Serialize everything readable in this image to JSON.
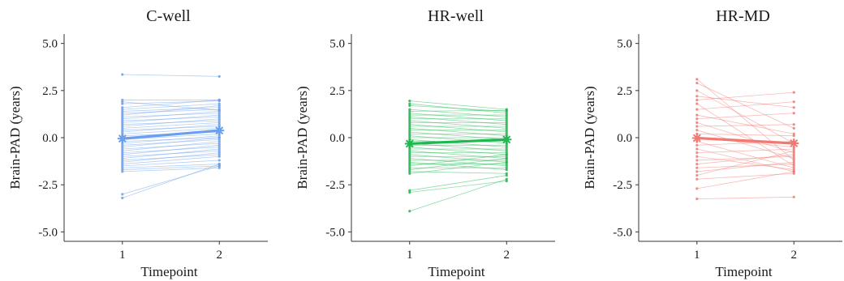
{
  "chart_data": [
    {
      "type": "line",
      "title": "C-well",
      "xlabel": "Timepoint",
      "ylabel": "Brain-PAD (years)",
      "x": [
        1,
        2
      ],
      "xticks": [
        "1",
        "2"
      ],
      "ylim": [
        -5.5,
        5.5
      ],
      "yticks": [
        "5.0",
        "2.5",
        "0.0",
        "-2.5",
        "-5.0"
      ],
      "color": "#6a9fee",
      "grid": false,
      "mean": [
        -0.05,
        0.38
      ],
      "subjects": [
        [
          3.35,
          3.25
        ],
        [
          2.0,
          2.0
        ],
        [
          1.9,
          1.45
        ],
        [
          1.8,
          1.95
        ],
        [
          1.6,
          2.0
        ],
        [
          1.5,
          1.8
        ],
        [
          1.4,
          1.6
        ],
        [
          1.3,
          1.5
        ],
        [
          1.2,
          1.7
        ],
        [
          1.1,
          1.3
        ],
        [
          1.0,
          1.4
        ],
        [
          0.9,
          1.1
        ],
        [
          0.8,
          1.2
        ],
        [
          0.7,
          0.9
        ],
        [
          0.6,
          1.0
        ],
        [
          0.5,
          0.8
        ],
        [
          0.4,
          0.6
        ],
        [
          0.3,
          0.7
        ],
        [
          0.2,
          0.5
        ],
        [
          0.1,
          0.3
        ],
        [
          0.0,
          0.4
        ],
        [
          -0.1,
          0.2
        ],
        [
          -0.2,
          0.0
        ],
        [
          -0.3,
          0.1
        ],
        [
          -0.4,
          -0.1
        ],
        [
          -0.5,
          0.0
        ],
        [
          -0.6,
          -0.3
        ],
        [
          -0.7,
          -0.2
        ],
        [
          -0.8,
          -0.5
        ],
        [
          -0.9,
          -0.4
        ],
        [
          -1.0,
          -0.7
        ],
        [
          -1.1,
          -0.6
        ],
        [
          -1.2,
          -0.9
        ],
        [
          -1.3,
          -0.8
        ],
        [
          -1.4,
          -1.0
        ],
        [
          -1.5,
          -1.2
        ],
        [
          -1.6,
          -1.4
        ],
        [
          -1.7,
          -1.5
        ],
        [
          -1.8,
          -1.6
        ],
        [
          -3.0,
          -1.5
        ],
        [
          -3.2,
          -1.4
        ]
      ]
    },
    {
      "type": "line",
      "title": "HR-well",
      "xlabel": "Timepoint",
      "ylabel": "Brain-PAD (years)",
      "x": [
        1,
        2
      ],
      "xticks": [
        "1",
        "2"
      ],
      "ylim": [
        -5.5,
        5.5
      ],
      "yticks": [
        "5.0",
        "2.5",
        "0.0",
        "-2.5",
        "-5.0"
      ],
      "color": "#1fb84f",
      "grid": false,
      "mean": [
        -0.32,
        -0.1
      ],
      "subjects": [
        [
          1.95,
          1.5
        ],
        [
          1.8,
          1.3
        ],
        [
          1.7,
          1.4
        ],
        [
          1.5,
          1.1
        ],
        [
          1.4,
          1.45
        ],
        [
          1.3,
          0.9
        ],
        [
          1.2,
          1.2
        ],
        [
          1.1,
          0.7
        ],
        [
          1.0,
          1.0
        ],
        [
          0.9,
          0.5
        ],
        [
          0.8,
          0.8
        ],
        [
          0.7,
          0.3
        ],
        [
          0.6,
          0.6
        ],
        [
          0.5,
          0.1
        ],
        [
          0.4,
          0.4
        ],
        [
          0.3,
          -0.1
        ],
        [
          0.2,
          0.2
        ],
        [
          0.1,
          -0.3
        ],
        [
          0.0,
          0.0
        ],
        [
          -0.1,
          -0.5
        ],
        [
          -0.2,
          -0.2
        ],
        [
          -0.3,
          -0.7
        ],
        [
          -0.4,
          -0.4
        ],
        [
          -0.5,
          -0.9
        ],
        [
          -0.6,
          -0.6
        ],
        [
          -0.7,
          -1.1
        ],
        [
          -0.8,
          -0.8
        ],
        [
          -0.9,
          -1.3
        ],
        [
          -1.0,
          -1.0
        ],
        [
          -1.1,
          -1.5
        ],
        [
          -1.2,
          -1.2
        ],
        [
          -1.3,
          -1.7
        ],
        [
          -1.4,
          -1.4
        ],
        [
          -1.5,
          -0.9
        ],
        [
          -1.6,
          -1.6
        ],
        [
          -1.7,
          -1.1
        ],
        [
          -1.8,
          -1.9
        ],
        [
          -1.9,
          -1.3
        ],
        [
          -2.8,
          -2.0
        ],
        [
          -2.9,
          -2.3
        ],
        [
          -3.9,
          -2.2
        ]
      ]
    },
    {
      "type": "line",
      "title": "HR-MD",
      "xlabel": "Timepoint",
      "ylabel": "Brain-PAD (years)",
      "x": [
        1,
        2
      ],
      "xticks": [
        "1",
        "2"
      ],
      "ylim": [
        -5.5,
        5.5
      ],
      "yticks": [
        "5.0",
        "2.5",
        "0.0",
        "-2.5",
        "-5.0"
      ],
      "color": "#f07a73",
      "grid": false,
      "mean": [
        -0.02,
        -0.3
      ],
      "subjects": [
        [
          3.1,
          -1.2
        ],
        [
          2.9,
          0.5
        ],
        [
          2.5,
          -0.3
        ],
        [
          2.2,
          1.6
        ],
        [
          2.0,
          2.4
        ],
        [
          1.8,
          -1.5
        ],
        [
          1.5,
          1.9
        ],
        [
          1.2,
          0.2
        ],
        [
          1.0,
          1.3
        ],
        [
          0.8,
          -0.8
        ],
        [
          0.6,
          0.7
        ],
        [
          0.4,
          -1.1
        ],
        [
          0.2,
          0.1
        ],
        [
          0.0,
          -0.5
        ],
        [
          -0.2,
          -1.6
        ],
        [
          -0.4,
          -0.2
        ],
        [
          -0.6,
          -1.8
        ],
        [
          -0.8,
          -0.6
        ],
        [
          -1.0,
          -1.7
        ],
        [
          -1.2,
          -1.0
        ],
        [
          -1.4,
          -0.9
        ],
        [
          -1.6,
          -1.4
        ],
        [
          -1.8,
          -1.3
        ],
        [
          -2.0,
          -0.7
        ],
        [
          -2.2,
          -1.9
        ],
        [
          -2.7,
          -1.8
        ],
        [
          -3.25,
          -3.15
        ]
      ]
    }
  ]
}
